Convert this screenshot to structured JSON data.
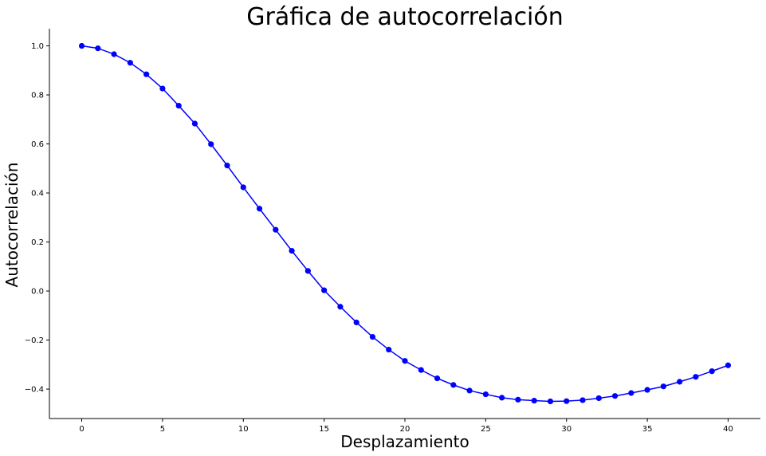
{
  "chart_data": {
    "type": "line",
    "title": "Gráfica de autocorrelación",
    "xlabel": "Desplazamiento",
    "ylabel": "Autocorrelación",
    "xlim": [
      -2,
      42
    ],
    "ylim": [
      -0.52,
      1.07
    ],
    "xticks": [
      0,
      5,
      10,
      15,
      20,
      25,
      30,
      35,
      40
    ],
    "xtick_labels": [
      "0",
      "5",
      "10",
      "15",
      "20",
      "25",
      "30",
      "35",
      "40"
    ],
    "yticks": [
      -0.4,
      -0.2,
      0.0,
      0.2,
      0.4,
      0.6,
      0.8,
      1.0
    ],
    "ytick_labels": [
      "−0.4",
      "−0.2",
      "0.0",
      "0.2",
      "0.4",
      "0.6",
      "0.8",
      "1.0"
    ],
    "grid": false,
    "series": [
      {
        "color": "#0000ff",
        "marker": "circle",
        "x": [
          0,
          1,
          2,
          3,
          4,
          5,
          6,
          7,
          8,
          9,
          10,
          11,
          12,
          13,
          14,
          15,
          16,
          17,
          18,
          19,
          20,
          21,
          22,
          23,
          24,
          25,
          26,
          27,
          28,
          29,
          30,
          31,
          32,
          33,
          34,
          35,
          36,
          37,
          38,
          39,
          40
        ],
        "values": [
          1.0,
          0.99,
          0.966,
          0.931,
          0.884,
          0.826,
          0.756,
          0.683,
          0.599,
          0.512,
          0.423,
          0.336,
          0.25,
          0.164,
          0.082,
          0.003,
          -0.064,
          -0.128,
          -0.187,
          -0.239,
          -0.285,
          -0.322,
          -0.356,
          -0.383,
          -0.406,
          -0.421,
          -0.435,
          -0.443,
          -0.447,
          -0.45,
          -0.449,
          -0.445,
          -0.437,
          -0.428,
          -0.416,
          -0.403,
          -0.389,
          -0.37,
          -0.35,
          -0.327,
          -0.303
        ]
      }
    ]
  }
}
